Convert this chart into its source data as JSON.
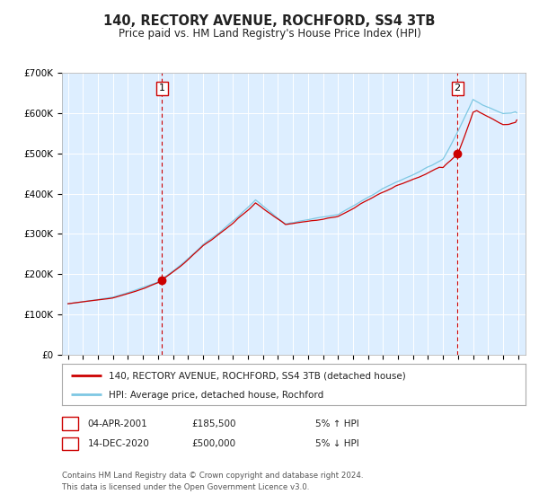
{
  "title": "140, RECTORY AVENUE, ROCHFORD, SS4 3TB",
  "subtitle": "Price paid vs. HM Land Registry's House Price Index (HPI)",
  "legend_line1": "140, RECTORY AVENUE, ROCHFORD, SS4 3TB (detached house)",
  "legend_line2": "HPI: Average price, detached house, Rochford",
  "footnote1": "Contains HM Land Registry data © Crown copyright and database right 2024.",
  "footnote2": "This data is licensed under the Open Government Licence v3.0.",
  "annotation1_label": "1",
  "annotation1_date": "04-APR-2001",
  "annotation1_price": "£185,500",
  "annotation1_note": "5% ↑ HPI",
  "annotation2_label": "2",
  "annotation2_date": "14-DEC-2020",
  "annotation2_price": "£500,000",
  "annotation2_note": "5% ↓ HPI",
  "red_line_color": "#cc0000",
  "blue_line_color": "#7ec8e3",
  "plot_bg_color": "#ddeeff",
  "grid_color": "#ffffff",
  "sale1_x": 2001.27,
  "sale1_y": 185500,
  "sale2_x": 2020.96,
  "sale2_y": 500000,
  "vline1_x": 2001.27,
  "vline2_x": 2020.96,
  "ylim": [
    0,
    700000
  ],
  "xlim_start": 1994.6,
  "xlim_end": 2025.5,
  "yticks": [
    0,
    100000,
    200000,
    300000,
    400000,
    500000,
    600000,
    700000
  ],
  "ytick_labels": [
    "£0",
    "£100K",
    "£200K",
    "£300K",
    "£400K",
    "£500K",
    "£600K",
    "£700K"
  ],
  "xtick_start": 1995,
  "xtick_end": 2025
}
